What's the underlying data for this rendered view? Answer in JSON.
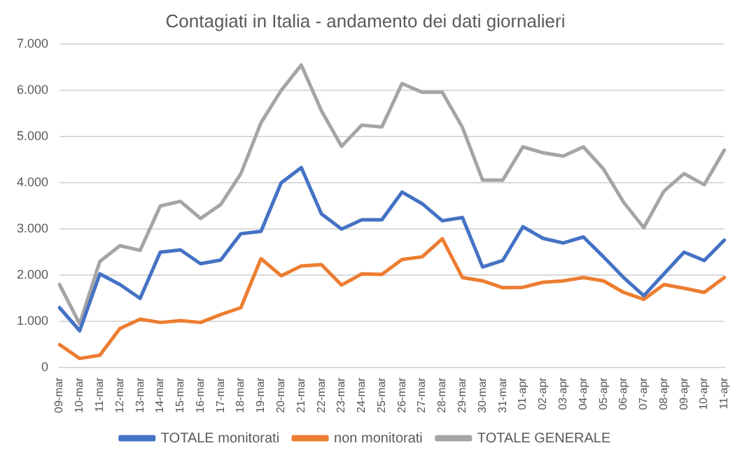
{
  "chart_data": {
    "type": "line",
    "title": "Contagiati in Italia - andamento dei dati giornalieri",
    "categories": [
      "09-mar",
      "10-mar",
      "11-mar",
      "12-mar",
      "13-mar",
      "14-mar",
      "15-mar",
      "16-mar",
      "17-mar",
      "18-mar",
      "19-mar",
      "20-mar",
      "21-mar",
      "22-mar",
      "23-mar",
      "24-mar",
      "25-mar",
      "26-mar",
      "27-mar",
      "28-mar",
      "29-mar",
      "30-mar",
      "31-mar",
      "01-apr",
      "02-apr",
      "03-apr",
      "04-apr",
      "05-apr",
      "06-apr",
      "07-apr",
      "08-apr",
      "09-apr",
      "10-apr",
      "11-apr"
    ],
    "series": [
      {
        "name": "TOTALE monitorati",
        "color": "#4472c4",
        "values": [
          1300,
          800,
          2030,
          1800,
          1500,
          2500,
          2550,
          2250,
          2330,
          2900,
          2950,
          4000,
          4330,
          3330,
          3000,
          3200,
          3200,
          3800,
          3550,
          3180,
          3250,
          2180,
          2320,
          3050,
          2800,
          2700,
          2830,
          2400,
          1950,
          1560,
          2030,
          2500,
          2320,
          2760
        ]
      },
      {
        "name": "non monitorati",
        "color": "#ed7d31",
        "values": [
          500,
          200,
          270,
          850,
          1050,
          980,
          1020,
          980,
          1150,
          1300,
          2360,
          1990,
          2200,
          2230,
          1790,
          2030,
          2020,
          2340,
          2400,
          2790,
          1950,
          1880,
          1730,
          1740,
          1850,
          1880,
          1950,
          1880,
          1630,
          1480,
          1800,
          1720,
          1630,
          1950
        ]
      },
      {
        "name": "TOTALE GENERALE",
        "color": "#a5a5a5",
        "values": [
          1800,
          950,
          2300,
          2640,
          2540,
          3500,
          3600,
          3230,
          3530,
          4200,
          5300,
          6000,
          6550,
          5560,
          4790,
          5250,
          5210,
          6150,
          5960,
          5960,
          5200,
          4060,
          4060,
          4780,
          4650,
          4580,
          4780,
          4300,
          3580,
          3030,
          3820,
          4200,
          3960,
          4710
        ]
      }
    ],
    "ylim": [
      0,
      7000
    ],
    "yticks": [
      {
        "value": 0,
        "label": "0"
      },
      {
        "value": 1000,
        "label": "1.000"
      },
      {
        "value": 2000,
        "label": "2.000"
      },
      {
        "value": 3000,
        "label": "3.000"
      },
      {
        "value": 4000,
        "label": "4.000"
      },
      {
        "value": 5000,
        "label": "5.000"
      },
      {
        "value": 6000,
        "label": "6.000"
      },
      {
        "value": 7000,
        "label": "7.000"
      }
    ],
    "grid": "y",
    "legend": "bottom",
    "marker": "none",
    "line_style": "solid"
  }
}
